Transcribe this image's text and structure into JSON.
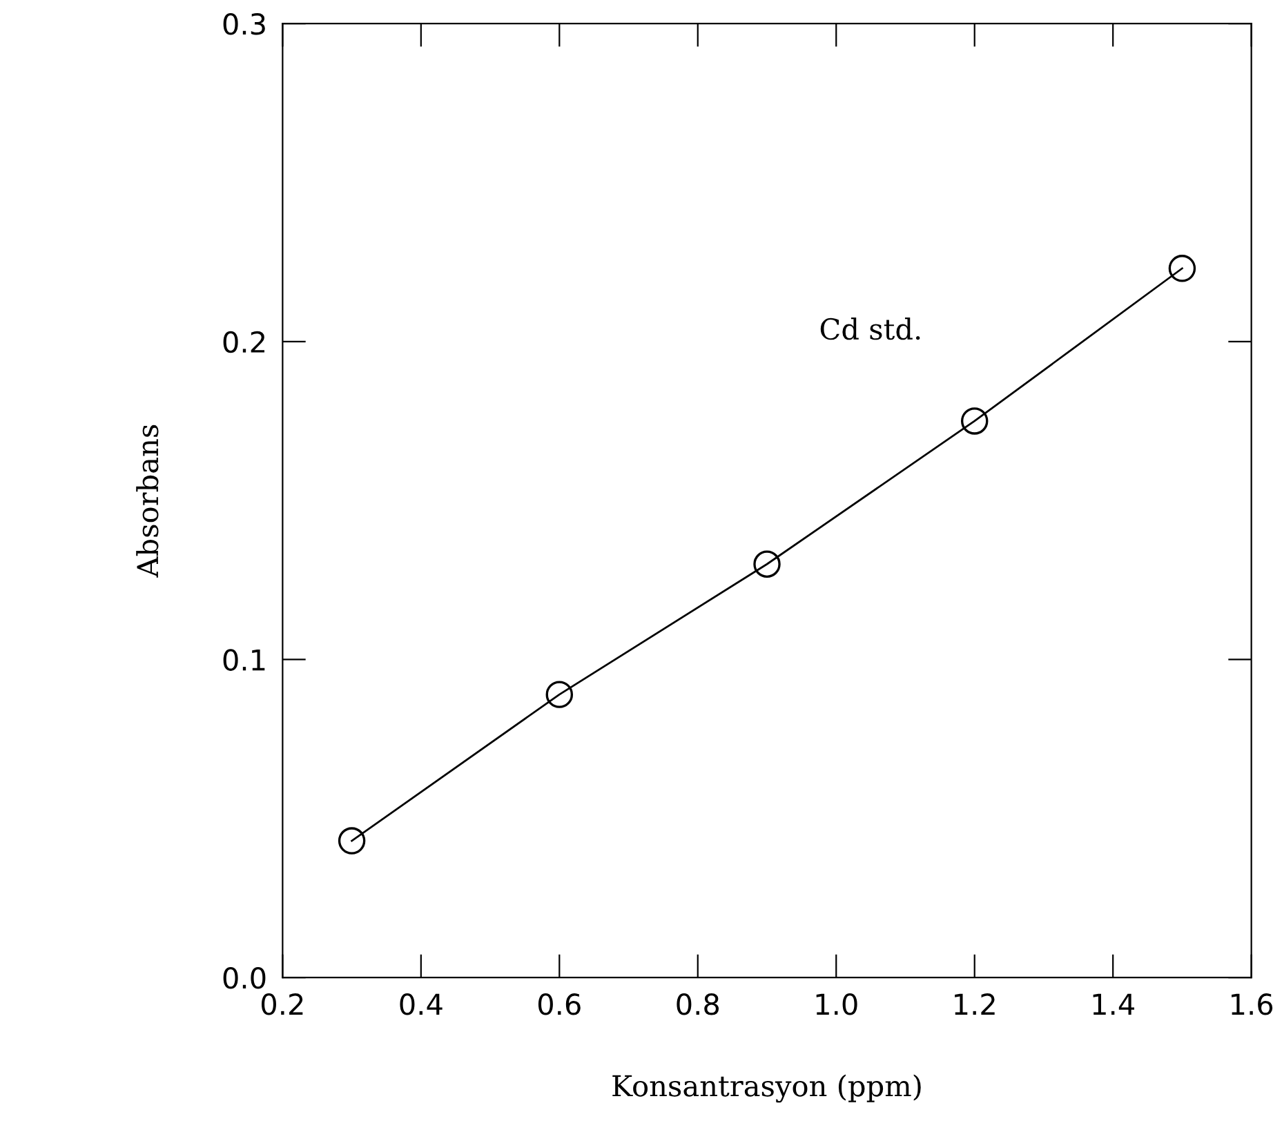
{
  "chart_data": {
    "type": "line",
    "xlabel": "Konsantrasyon (ppm)",
    "ylabel": "Absorbans",
    "x": [
      0.3,
      0.6,
      0.9,
      1.2,
      1.5
    ],
    "series": [
      {
        "name": "Cd std.",
        "color": "#000000",
        "values": [
          0.043,
          0.089,
          0.13,
          0.175,
          0.223
        ]
      }
    ],
    "xlim": [
      0.2,
      1.6
    ],
    "ylim": [
      0.0,
      0.3
    ],
    "xticks": [
      {
        "value": 0.2,
        "label": "0.2"
      },
      {
        "value": 0.4,
        "label": "0.4"
      },
      {
        "value": 0.6,
        "label": "0.6"
      },
      {
        "value": 0.8,
        "label": "0.8"
      },
      {
        "value": 1.0,
        "label": "1.0"
      },
      {
        "value": 1.2,
        "label": "1.2"
      },
      {
        "value": 1.4,
        "label": "1.4"
      },
      {
        "value": 1.6,
        "label": "1.6"
      }
    ],
    "yticks": [
      {
        "value": 0.0,
        "label": "0.0"
      },
      {
        "value": 0.1,
        "label": "0.1"
      },
      {
        "value": 0.2,
        "label": "0.2"
      },
      {
        "value": 0.3,
        "label": "0.3"
      }
    ],
    "marker": "circle",
    "line_style": "solid",
    "grid": false,
    "legend": false
  }
}
